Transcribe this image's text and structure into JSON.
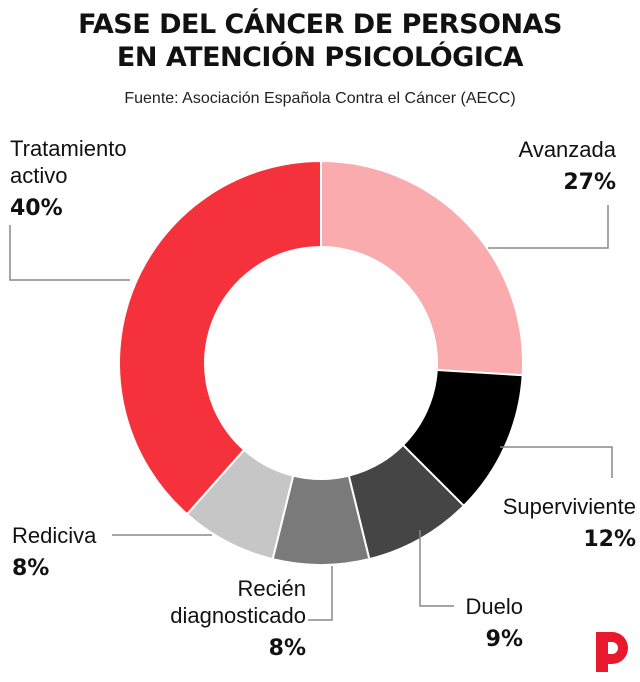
{
  "header": {
    "title_line1": "FASE DEL CÁNCER DE PERSONAS",
    "title_line2": "EN ATENCIÓN PSICOLÓGICA",
    "source": "Fuente: Asociación Española Contra el Cáncer (AECC)"
  },
  "chart_data": {
    "type": "pie",
    "donut": true,
    "title": "FASE DEL CÁNCER DE PERSONAS EN ATENCIÓN PSICOLÓGICA",
    "source": "Fuente: Asociación Española Contra el Cáncer (AECC)",
    "slices": [
      {
        "label": [
          "Avanzada"
        ],
        "value": 27,
        "pct_label": "27%",
        "color": "#f9abae"
      },
      {
        "label": [
          "Superviviente"
        ],
        "value": 12,
        "pct_label": "12%",
        "color": "#000000"
      },
      {
        "label": [
          "Duelo"
        ],
        "value": 9,
        "pct_label": "9%",
        "color": "#454545"
      },
      {
        "label": [
          "Recién",
          "diagnosticado"
        ],
        "value": 8,
        "pct_label": "8%",
        "color": "#7a7a7a"
      },
      {
        "label": [
          "Redicivа"
        ],
        "value": 8,
        "pct_label": "8%",
        "color": "#c6c6c6"
      },
      {
        "label": [
          "Tratamiento",
          "activo"
        ],
        "value": 40,
        "pct_label": "40%",
        "color": "#f5323b"
      }
    ],
    "legend": "none"
  },
  "colors": {
    "leader": "#888888",
    "brand": "#e8192c"
  },
  "brand_icon": "publico-p-logo"
}
